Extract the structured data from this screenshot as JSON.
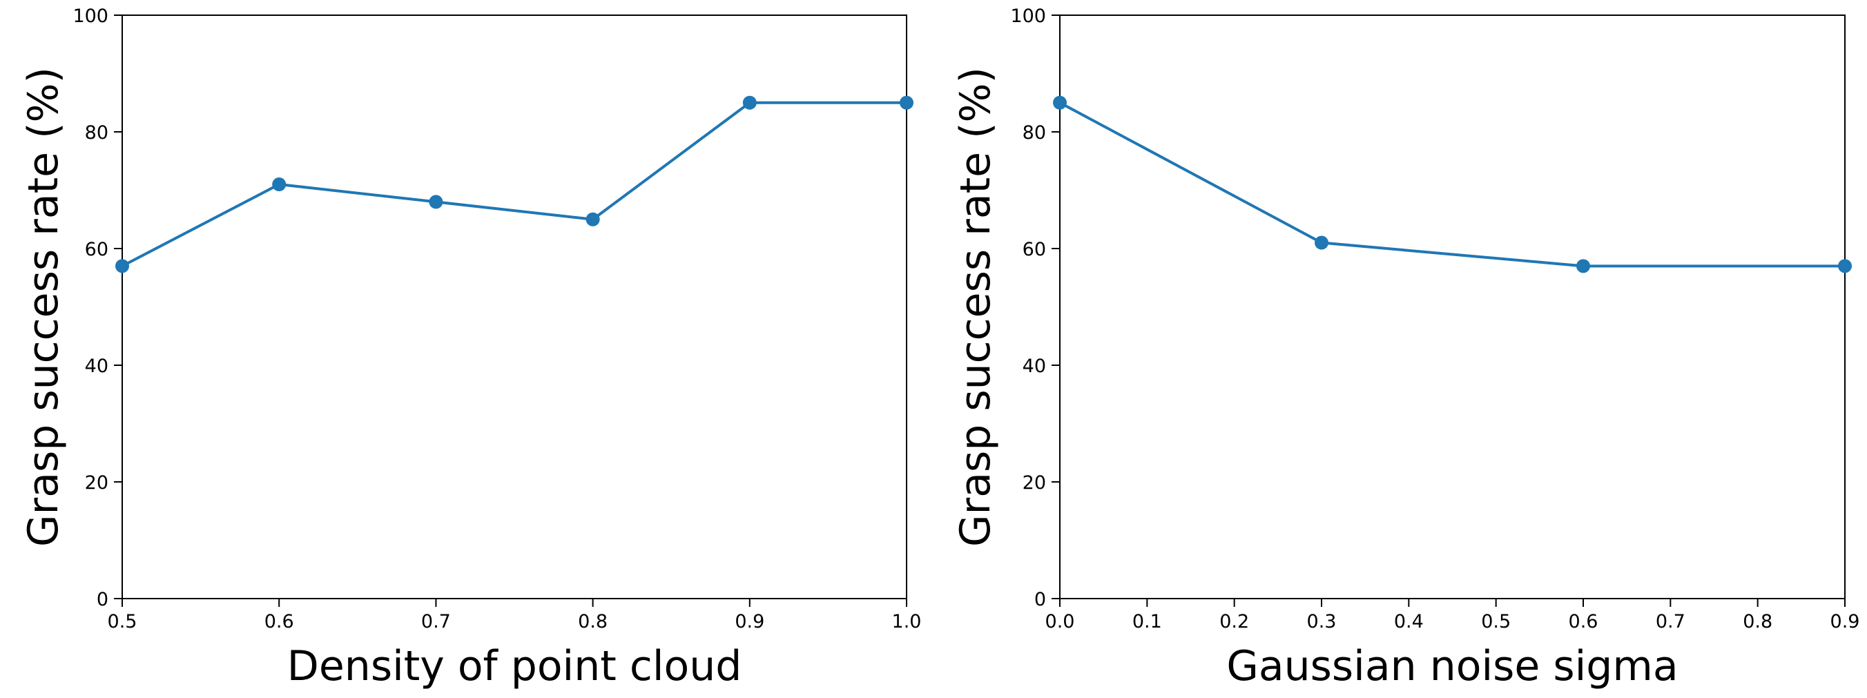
{
  "colors": {
    "series": "#1f77b4",
    "axis": "#000000",
    "background": "#ffffff"
  },
  "chart_data": [
    {
      "type": "line",
      "xlabel": "Density of point cloud",
      "ylabel": "Grasp success rate (%)",
      "x": [
        0.5,
        0.6,
        0.7,
        0.8,
        0.9,
        1.0
      ],
      "series": [
        {
          "values": [
            57,
            71,
            68,
            65,
            85,
            85
          ]
        }
      ],
      "xlim": [
        0.5,
        1.0
      ],
      "ylim": [
        0,
        100
      ],
      "xticks": [
        "0.5",
        "0.6",
        "0.7",
        "0.8",
        "0.9",
        "1.0"
      ],
      "yticks": [
        "0",
        "20",
        "40",
        "60",
        "80",
        "100"
      ],
      "marker": "circle",
      "grid": false,
      "legend": false
    },
    {
      "type": "line",
      "xlabel": "Gaussian noise sigma",
      "ylabel": "Grasp success rate (%)",
      "x": [
        0.0,
        0.3,
        0.6,
        0.9
      ],
      "series": [
        {
          "values": [
            85,
            61,
            57,
            57
          ]
        }
      ],
      "xlim": [
        0.0,
        0.9
      ],
      "ylim": [
        0,
        100
      ],
      "xticks": [
        "0.0",
        "0.1",
        "0.2",
        "0.3",
        "0.4",
        "0.5",
        "0.6",
        "0.7",
        "0.8",
        "0.9"
      ],
      "yticks": [
        "0",
        "20",
        "40",
        "60",
        "80",
        "100"
      ],
      "marker": "circle",
      "grid": false,
      "legend": false
    }
  ]
}
